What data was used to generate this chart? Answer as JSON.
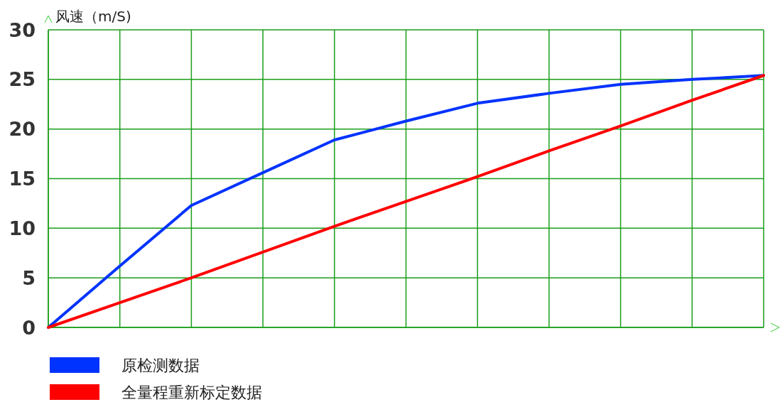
{
  "chart_data": {
    "type": "line",
    "ylabel": "风速（m/S)",
    "categories": [
      null,
      null,
      null,
      null,
      null,
      null,
      null,
      null,
      null,
      null,
      null
    ],
    "series": [
      {
        "name": "原检测数据",
        "color": "#0033ff",
        "values": [
          0,
          6.2,
          12.3,
          15.6,
          18.9,
          20.8,
          22.6,
          23.6,
          24.5,
          25.0,
          25.4
        ]
      },
      {
        "name": "全量程重新标定数据",
        "color": "#ff0000",
        "values": [
          0,
          2.5,
          5.0,
          7.6,
          10.2,
          12.7,
          15.2,
          17.8,
          20.3,
          22.9,
          25.4
        ]
      }
    ],
    "ylim": [
      0,
      30
    ],
    "yticks": [
      0,
      5,
      10,
      15,
      20,
      25,
      30
    ],
    "grid": true,
    "legend": "bottom",
    "marker": "none",
    "line_style": "solid"
  }
}
